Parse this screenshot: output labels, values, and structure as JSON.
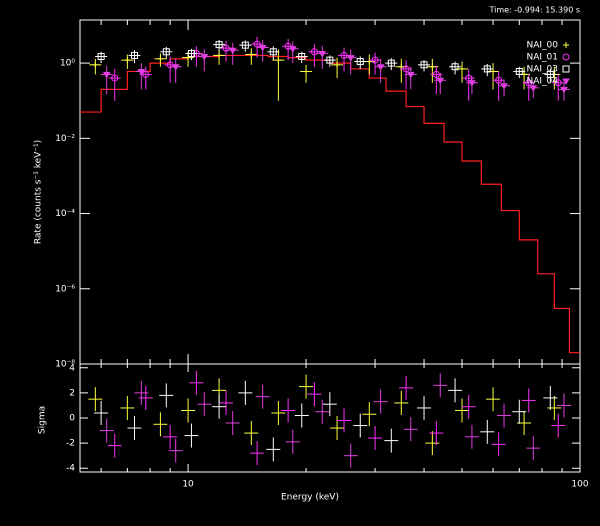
{
  "chart_data": {
    "type": "spectrum",
    "annotation": "Time: -0.994: 15.390 s",
    "xlabel": "Energy (keV)",
    "ylabel": "Rate (counts s⁻¹ keV⁻¹)",
    "residual_label": "Sigma",
    "xscale": "log",
    "yscale": "log",
    "xlim": [
      5.3,
      100
    ],
    "ylim": [
      1e-08,
      14
    ],
    "xticks": [
      10,
      100
    ],
    "xminor": [
      6,
      7,
      8,
      9,
      20,
      30,
      40,
      50,
      60,
      70,
      80,
      90
    ],
    "yticks": [
      {
        "value": 1,
        "label": "10⁰"
      },
      {
        "value": 0.01,
        "label": "10⁻²"
      },
      {
        "value": 0.0001,
        "label": "10⁻⁴"
      },
      {
        "value": 1e-06,
        "label": "10⁻⁶"
      },
      {
        "value": 1e-08,
        "label": "10⁻⁸"
      }
    ],
    "residual_ylim": [
      -4.3,
      4.3
    ],
    "residual_yticks": [
      -4,
      -2,
      0,
      2,
      4
    ],
    "legend": "upper right",
    "model": {
      "color": "#ff2020",
      "bins": [
        5.3,
        6,
        7,
        8,
        9,
        10,
        12,
        14,
        16,
        18,
        20,
        23,
        26,
        29,
        32,
        36,
        40,
        45,
        50,
        56,
        63,
        70,
        78,
        86,
        94,
        100
      ],
      "values": [
        0.05,
        0.2,
        0.6,
        1.0,
        1.3,
        1.5,
        1.6,
        1.6,
        1.5,
        1.4,
        1.2,
        1.0,
        0.7,
        0.4,
        0.18,
        0.07,
        0.025,
        0.008,
        0.0025,
        0.0006,
        0.00012,
        2e-05,
        2.5e-06,
        3e-07,
        2e-08
      ]
    },
    "series": [
      {
        "name": "NAI_00",
        "color": "#ffff40",
        "marker": "plus",
        "x": [
          5.8,
          7,
          8.5,
          10,
          12,
          14.5,
          17,
          20,
          24,
          29,
          35,
          42,
          50,
          60,
          72,
          86
        ],
        "values": [
          0.9,
          1.2,
          1.3,
          1.4,
          1.6,
          1.7,
          1.2,
          0.6,
          0.9,
          1.1,
          0.8,
          0.8,
          0.7,
          0.6,
          0.5,
          0.5
        ],
        "errors": [
          0.4,
          0.5,
          0.5,
          0.6,
          0.7,
          0.8,
          1.1,
          0.3,
          0.5,
          0.6,
          0.5,
          0.5,
          0.4,
          0.4,
          0.3,
          0.3
        ],
        "residuals": [
          1.5,
          0.8,
          -0.5,
          0.6,
          2.2,
          -1.2,
          0.4,
          2.5,
          -0.8,
          0.3,
          1.2,
          -2.0,
          0.6,
          1.5,
          -0.4,
          0.8
        ]
      },
      {
        "name": "NAI_01",
        "color": "#ff30ff",
        "marker": "circle",
        "x": [
          6.5,
          7.8,
          9,
          10.5,
          12.5,
          15,
          18,
          21,
          25,
          30,
          36,
          43,
          52,
          62,
          74,
          88
        ],
        "values": [
          0.4,
          0.5,
          0.9,
          1.8,
          2.5,
          3.2,
          2.8,
          2.0,
          1.6,
          1.2,
          0.7,
          0.5,
          0.4,
          0.35,
          0.3,
          0.3
        ],
        "errors": [
          0.3,
          0.3,
          0.6,
          1.0,
          1.4,
          1.8,
          1.6,
          1.2,
          1.0,
          0.7,
          0.5,
          0.35,
          0.3,
          0.25,
          0.2,
          0.2
        ],
        "residuals": [
          -2.2,
          1.6,
          -1.5,
          2.8,
          1.2,
          -2.8,
          0.6,
          1.9,
          -0.2,
          -1.6,
          2.4,
          -1.2,
          0.9,
          -2.1,
          1.4,
          -0.6
        ]
      },
      {
        "name": "NAI_03",
        "color": "#ffffff",
        "marker": "square",
        "x": [
          6,
          7.3,
          8.8,
          10.2,
          12,
          14,
          16.5,
          19.5,
          23,
          27.5,
          33,
          40,
          48,
          58,
          70,
          84
        ],
        "values": [
          1.5,
          1.6,
          2.0,
          1.8,
          3.1,
          3.0,
          2.0,
          1.5,
          1.2,
          1.1,
          1.0,
          0.9,
          0.8,
          0.7,
          0.6,
          0.5
        ],
        "errors": [
          0.5,
          0.6,
          0.7,
          0.6,
          1.0,
          1.0,
          0.8,
          0.5,
          0.4,
          0.4,
          0.35,
          0.3,
          0.3,
          0.25,
          0.2,
          0.2
        ],
        "residuals": [
          0.4,
          -0.8,
          1.8,
          -1.4,
          0.9,
          2.0,
          -2.5,
          0.2,
          1.1,
          -0.6,
          -1.8,
          0.8,
          2.2,
          -1.1,
          0.5,
          1.6
        ]
      },
      {
        "name": "NAI_04",
        "color": "#e040e0",
        "marker": "triangle",
        "x": [
          6.2,
          7.6,
          9.3,
          11,
          13,
          15.5,
          18.5,
          22,
          26,
          31,
          37,
          44,
          53,
          64,
          76,
          91
        ],
        "values": [
          0.5,
          0.6,
          0.8,
          1.5,
          2.2,
          2.6,
          2.4,
          1.8,
          1.4,
          0.8,
          0.5,
          0.35,
          0.3,
          0.25,
          0.22,
          0.2
        ],
        "errors": [
          0.35,
          0.4,
          0.5,
          0.9,
          1.3,
          1.5,
          1.4,
          1.1,
          0.9,
          0.5,
          0.3,
          0.2,
          0.15,
          0.12,
          0.1,
          0.1
        ],
        "residuals": [
          -1.0,
          2.0,
          -2.6,
          1.1,
          -0.4,
          1.7,
          -1.9,
          0.5,
          -3.0,
          1.3,
          -0.9,
          2.6,
          -1.5,
          0.2,
          -2.4,
          1.0
        ]
      }
    ]
  }
}
